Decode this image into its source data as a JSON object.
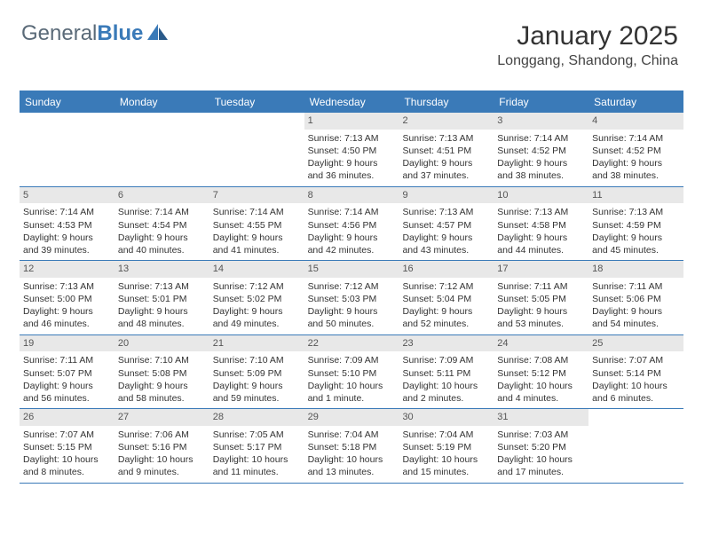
{
  "logo": {
    "text1": "General",
    "text2": "Blue"
  },
  "header": {
    "month_title": "January 2025",
    "location": "Longgang, Shandong, China"
  },
  "colors": {
    "brand_blue": "#3a7ab8",
    "header_bg": "#3a7ab8",
    "daynum_bg": "#e8e8e8",
    "text": "#333333"
  },
  "day_names": [
    "Sunday",
    "Monday",
    "Tuesday",
    "Wednesday",
    "Thursday",
    "Friday",
    "Saturday"
  ],
  "weeks": [
    [
      {
        "empty": true
      },
      {
        "empty": true
      },
      {
        "empty": true
      },
      {
        "num": "1",
        "sunrise": "Sunrise: 7:13 AM",
        "sunset": "Sunset: 4:50 PM",
        "day1": "Daylight: 9 hours",
        "day2": "and 36 minutes."
      },
      {
        "num": "2",
        "sunrise": "Sunrise: 7:13 AM",
        "sunset": "Sunset: 4:51 PM",
        "day1": "Daylight: 9 hours",
        "day2": "and 37 minutes."
      },
      {
        "num": "3",
        "sunrise": "Sunrise: 7:14 AM",
        "sunset": "Sunset: 4:52 PM",
        "day1": "Daylight: 9 hours",
        "day2": "and 38 minutes."
      },
      {
        "num": "4",
        "sunrise": "Sunrise: 7:14 AM",
        "sunset": "Sunset: 4:52 PM",
        "day1": "Daylight: 9 hours",
        "day2": "and 38 minutes."
      }
    ],
    [
      {
        "num": "5",
        "sunrise": "Sunrise: 7:14 AM",
        "sunset": "Sunset: 4:53 PM",
        "day1": "Daylight: 9 hours",
        "day2": "and 39 minutes."
      },
      {
        "num": "6",
        "sunrise": "Sunrise: 7:14 AM",
        "sunset": "Sunset: 4:54 PM",
        "day1": "Daylight: 9 hours",
        "day2": "and 40 minutes."
      },
      {
        "num": "7",
        "sunrise": "Sunrise: 7:14 AM",
        "sunset": "Sunset: 4:55 PM",
        "day1": "Daylight: 9 hours",
        "day2": "and 41 minutes."
      },
      {
        "num": "8",
        "sunrise": "Sunrise: 7:14 AM",
        "sunset": "Sunset: 4:56 PM",
        "day1": "Daylight: 9 hours",
        "day2": "and 42 minutes."
      },
      {
        "num": "9",
        "sunrise": "Sunrise: 7:13 AM",
        "sunset": "Sunset: 4:57 PM",
        "day1": "Daylight: 9 hours",
        "day2": "and 43 minutes."
      },
      {
        "num": "10",
        "sunrise": "Sunrise: 7:13 AM",
        "sunset": "Sunset: 4:58 PM",
        "day1": "Daylight: 9 hours",
        "day2": "and 44 minutes."
      },
      {
        "num": "11",
        "sunrise": "Sunrise: 7:13 AM",
        "sunset": "Sunset: 4:59 PM",
        "day1": "Daylight: 9 hours",
        "day2": "and 45 minutes."
      }
    ],
    [
      {
        "num": "12",
        "sunrise": "Sunrise: 7:13 AM",
        "sunset": "Sunset: 5:00 PM",
        "day1": "Daylight: 9 hours",
        "day2": "and 46 minutes."
      },
      {
        "num": "13",
        "sunrise": "Sunrise: 7:13 AM",
        "sunset": "Sunset: 5:01 PM",
        "day1": "Daylight: 9 hours",
        "day2": "and 48 minutes."
      },
      {
        "num": "14",
        "sunrise": "Sunrise: 7:12 AM",
        "sunset": "Sunset: 5:02 PM",
        "day1": "Daylight: 9 hours",
        "day2": "and 49 minutes."
      },
      {
        "num": "15",
        "sunrise": "Sunrise: 7:12 AM",
        "sunset": "Sunset: 5:03 PM",
        "day1": "Daylight: 9 hours",
        "day2": "and 50 minutes."
      },
      {
        "num": "16",
        "sunrise": "Sunrise: 7:12 AM",
        "sunset": "Sunset: 5:04 PM",
        "day1": "Daylight: 9 hours",
        "day2": "and 52 minutes."
      },
      {
        "num": "17",
        "sunrise": "Sunrise: 7:11 AM",
        "sunset": "Sunset: 5:05 PM",
        "day1": "Daylight: 9 hours",
        "day2": "and 53 minutes."
      },
      {
        "num": "18",
        "sunrise": "Sunrise: 7:11 AM",
        "sunset": "Sunset: 5:06 PM",
        "day1": "Daylight: 9 hours",
        "day2": "and 54 minutes."
      }
    ],
    [
      {
        "num": "19",
        "sunrise": "Sunrise: 7:11 AM",
        "sunset": "Sunset: 5:07 PM",
        "day1": "Daylight: 9 hours",
        "day2": "and 56 minutes."
      },
      {
        "num": "20",
        "sunrise": "Sunrise: 7:10 AM",
        "sunset": "Sunset: 5:08 PM",
        "day1": "Daylight: 9 hours",
        "day2": "and 58 minutes."
      },
      {
        "num": "21",
        "sunrise": "Sunrise: 7:10 AM",
        "sunset": "Sunset: 5:09 PM",
        "day1": "Daylight: 9 hours",
        "day2": "and 59 minutes."
      },
      {
        "num": "22",
        "sunrise": "Sunrise: 7:09 AM",
        "sunset": "Sunset: 5:10 PM",
        "day1": "Daylight: 10 hours",
        "day2": "and 1 minute."
      },
      {
        "num": "23",
        "sunrise": "Sunrise: 7:09 AM",
        "sunset": "Sunset: 5:11 PM",
        "day1": "Daylight: 10 hours",
        "day2": "and 2 minutes."
      },
      {
        "num": "24",
        "sunrise": "Sunrise: 7:08 AM",
        "sunset": "Sunset: 5:12 PM",
        "day1": "Daylight: 10 hours",
        "day2": "and 4 minutes."
      },
      {
        "num": "25",
        "sunrise": "Sunrise: 7:07 AM",
        "sunset": "Sunset: 5:14 PM",
        "day1": "Daylight: 10 hours",
        "day2": "and 6 minutes."
      }
    ],
    [
      {
        "num": "26",
        "sunrise": "Sunrise: 7:07 AM",
        "sunset": "Sunset: 5:15 PM",
        "day1": "Daylight: 10 hours",
        "day2": "and 8 minutes."
      },
      {
        "num": "27",
        "sunrise": "Sunrise: 7:06 AM",
        "sunset": "Sunset: 5:16 PM",
        "day1": "Daylight: 10 hours",
        "day2": "and 9 minutes."
      },
      {
        "num": "28",
        "sunrise": "Sunrise: 7:05 AM",
        "sunset": "Sunset: 5:17 PM",
        "day1": "Daylight: 10 hours",
        "day2": "and 11 minutes."
      },
      {
        "num": "29",
        "sunrise": "Sunrise: 7:04 AM",
        "sunset": "Sunset: 5:18 PM",
        "day1": "Daylight: 10 hours",
        "day2": "and 13 minutes."
      },
      {
        "num": "30",
        "sunrise": "Sunrise: 7:04 AM",
        "sunset": "Sunset: 5:19 PM",
        "day1": "Daylight: 10 hours",
        "day2": "and 15 minutes."
      },
      {
        "num": "31",
        "sunrise": "Sunrise: 7:03 AM",
        "sunset": "Sunset: 5:20 PM",
        "day1": "Daylight: 10 hours",
        "day2": "and 17 minutes."
      },
      {
        "empty": true
      }
    ]
  ]
}
